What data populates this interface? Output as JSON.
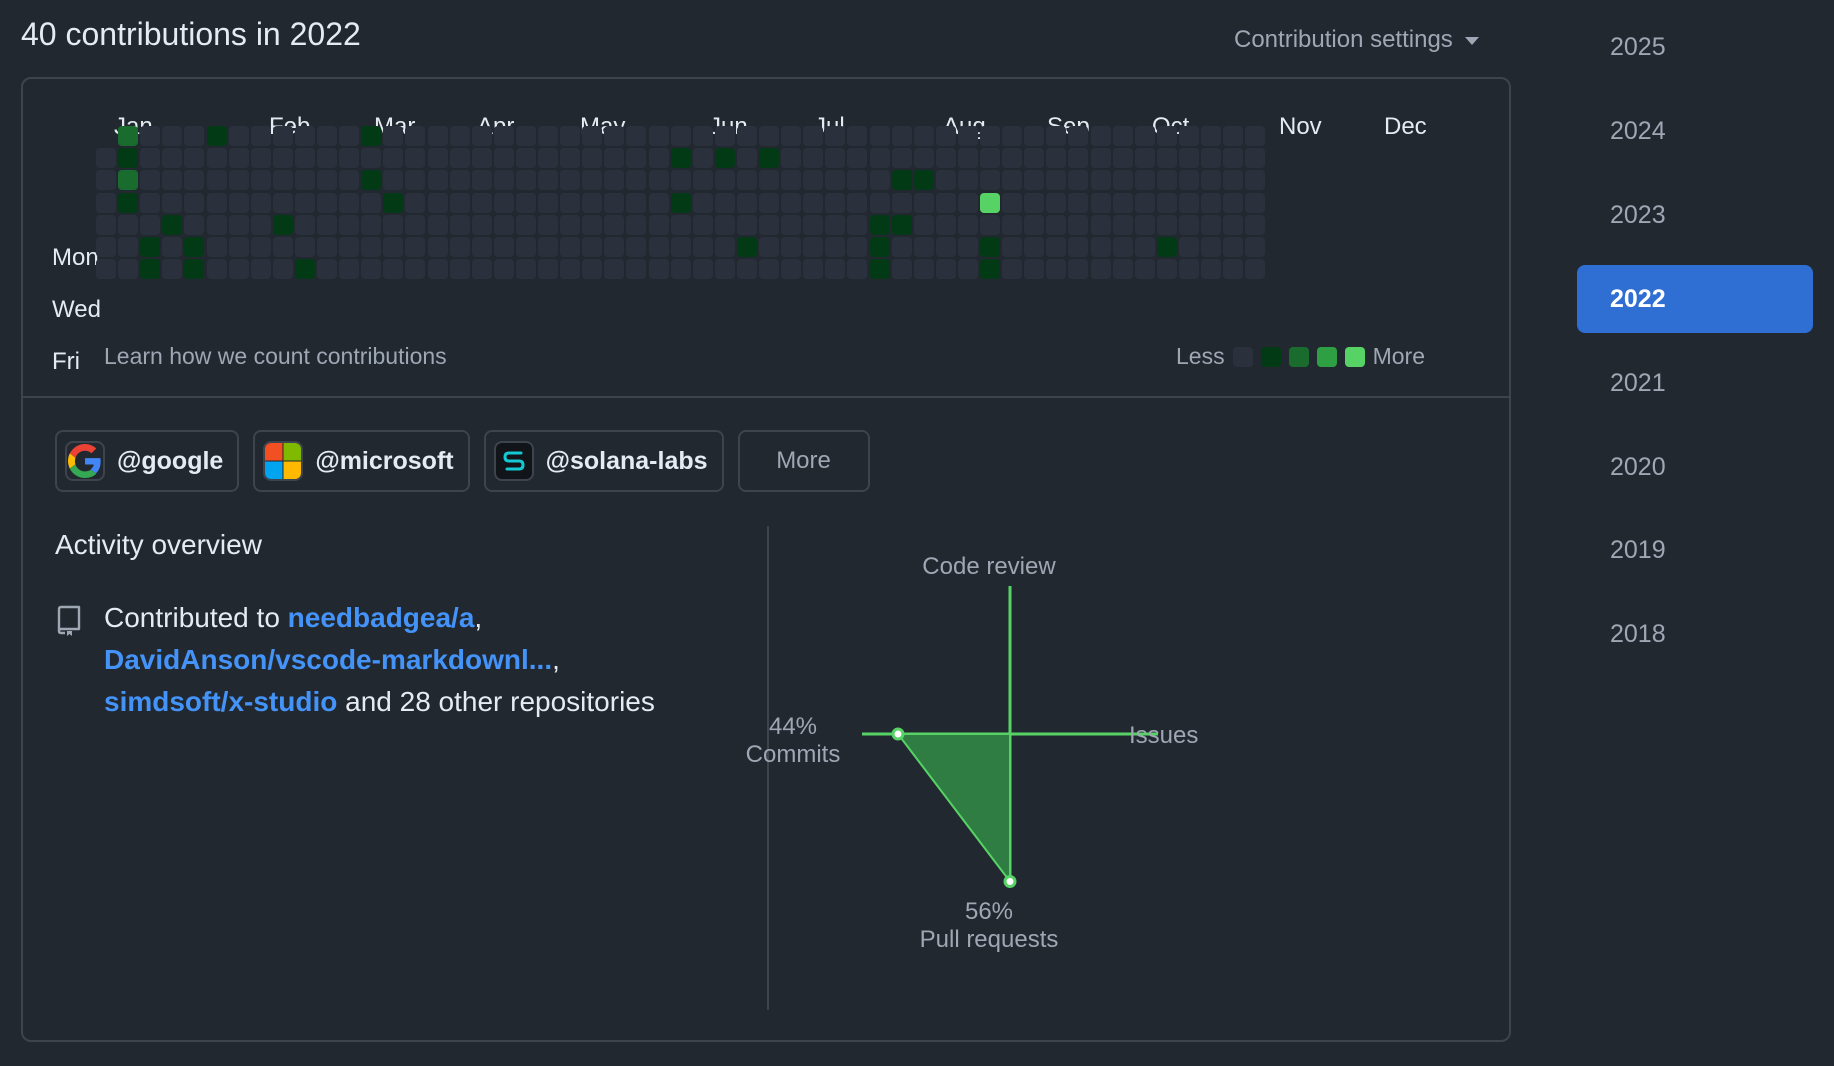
{
  "header": {
    "title": "40 contributions in 2022",
    "settings_label": "Contribution settings"
  },
  "calendar": {
    "months": [
      "Jan",
      "Feb",
      "Mar",
      "Apr",
      "May",
      "Jun",
      "Jul",
      "Aug",
      "Sep",
      "Oct",
      "Nov",
      "Dec"
    ],
    "days": [
      "Mon",
      "Wed",
      "Fri"
    ],
    "learn_link": "Learn how we count contributions",
    "legend_less": "Less",
    "legend_more": "More",
    "colors": [
      "#2a313c",
      "#033a16",
      "#196c2e",
      "#2ea043",
      "#56d364"
    ],
    "contributions": [
      [
        1,
        0,
        1
      ],
      [
        1,
        0,
        2
      ],
      [
        1,
        1,
        1
      ],
      [
        1,
        2,
        2
      ],
      [
        1,
        3,
        1
      ],
      [
        2,
        5,
        1
      ],
      [
        2,
        6,
        1
      ],
      [
        3,
        4,
        1
      ],
      [
        4,
        5,
        1
      ],
      [
        4,
        6,
        1
      ],
      [
        5,
        0,
        1
      ],
      [
        8,
        4,
        1
      ],
      [
        9,
        6,
        1
      ],
      [
        12,
        0,
        1
      ],
      [
        12,
        2,
        1
      ],
      [
        13,
        3,
        1
      ],
      [
        26,
        1,
        1
      ],
      [
        26,
        3,
        1
      ],
      [
        28,
        1,
        1
      ],
      [
        29,
        5,
        1
      ],
      [
        30,
        1,
        1
      ],
      [
        35,
        4,
        1
      ],
      [
        35,
        5,
        1
      ],
      [
        35,
        6,
        1
      ],
      [
        36,
        2,
        1
      ],
      [
        36,
        4,
        1
      ],
      [
        37,
        2,
        1
      ],
      [
        40,
        3,
        4
      ],
      [
        40,
        5,
        1
      ],
      [
        40,
        6,
        1
      ],
      [
        48,
        5,
        1
      ]
    ]
  },
  "orgs": [
    {
      "label": "@google",
      "icon": "google-logo-icon"
    },
    {
      "label": "@microsoft",
      "icon": "microsoft-logo-icon"
    },
    {
      "label": "@solana-labs",
      "icon": "solana-logo-icon"
    }
  ],
  "orgs_more": "More",
  "activity": {
    "title": "Activity overview",
    "prefix": "Contributed to ",
    "repos": [
      "needbadgea/a",
      "DavidAnson/vscode-markdownl...",
      "simdsoft/x-studio"
    ],
    "comma": ",",
    "suffix": " and 28 other repositories"
  },
  "radar": {
    "code_review_label": "Code review",
    "issues_label": "Issues",
    "commits_label": "Commits",
    "commits_pct": "44%",
    "commits_value": 44,
    "pull_requests_label": "Pull requests",
    "pull_requests_pct": "56%",
    "pull_requests_value": 56,
    "code_review_value": 0,
    "issues_value": 0,
    "line_color": "#56d364",
    "fill_color": "#2f7d43"
  },
  "years": {
    "list": [
      "2025",
      "2024",
      "2023",
      "2022",
      "2021",
      "2020",
      "2019",
      "2018"
    ],
    "selected": "2022"
  }
}
